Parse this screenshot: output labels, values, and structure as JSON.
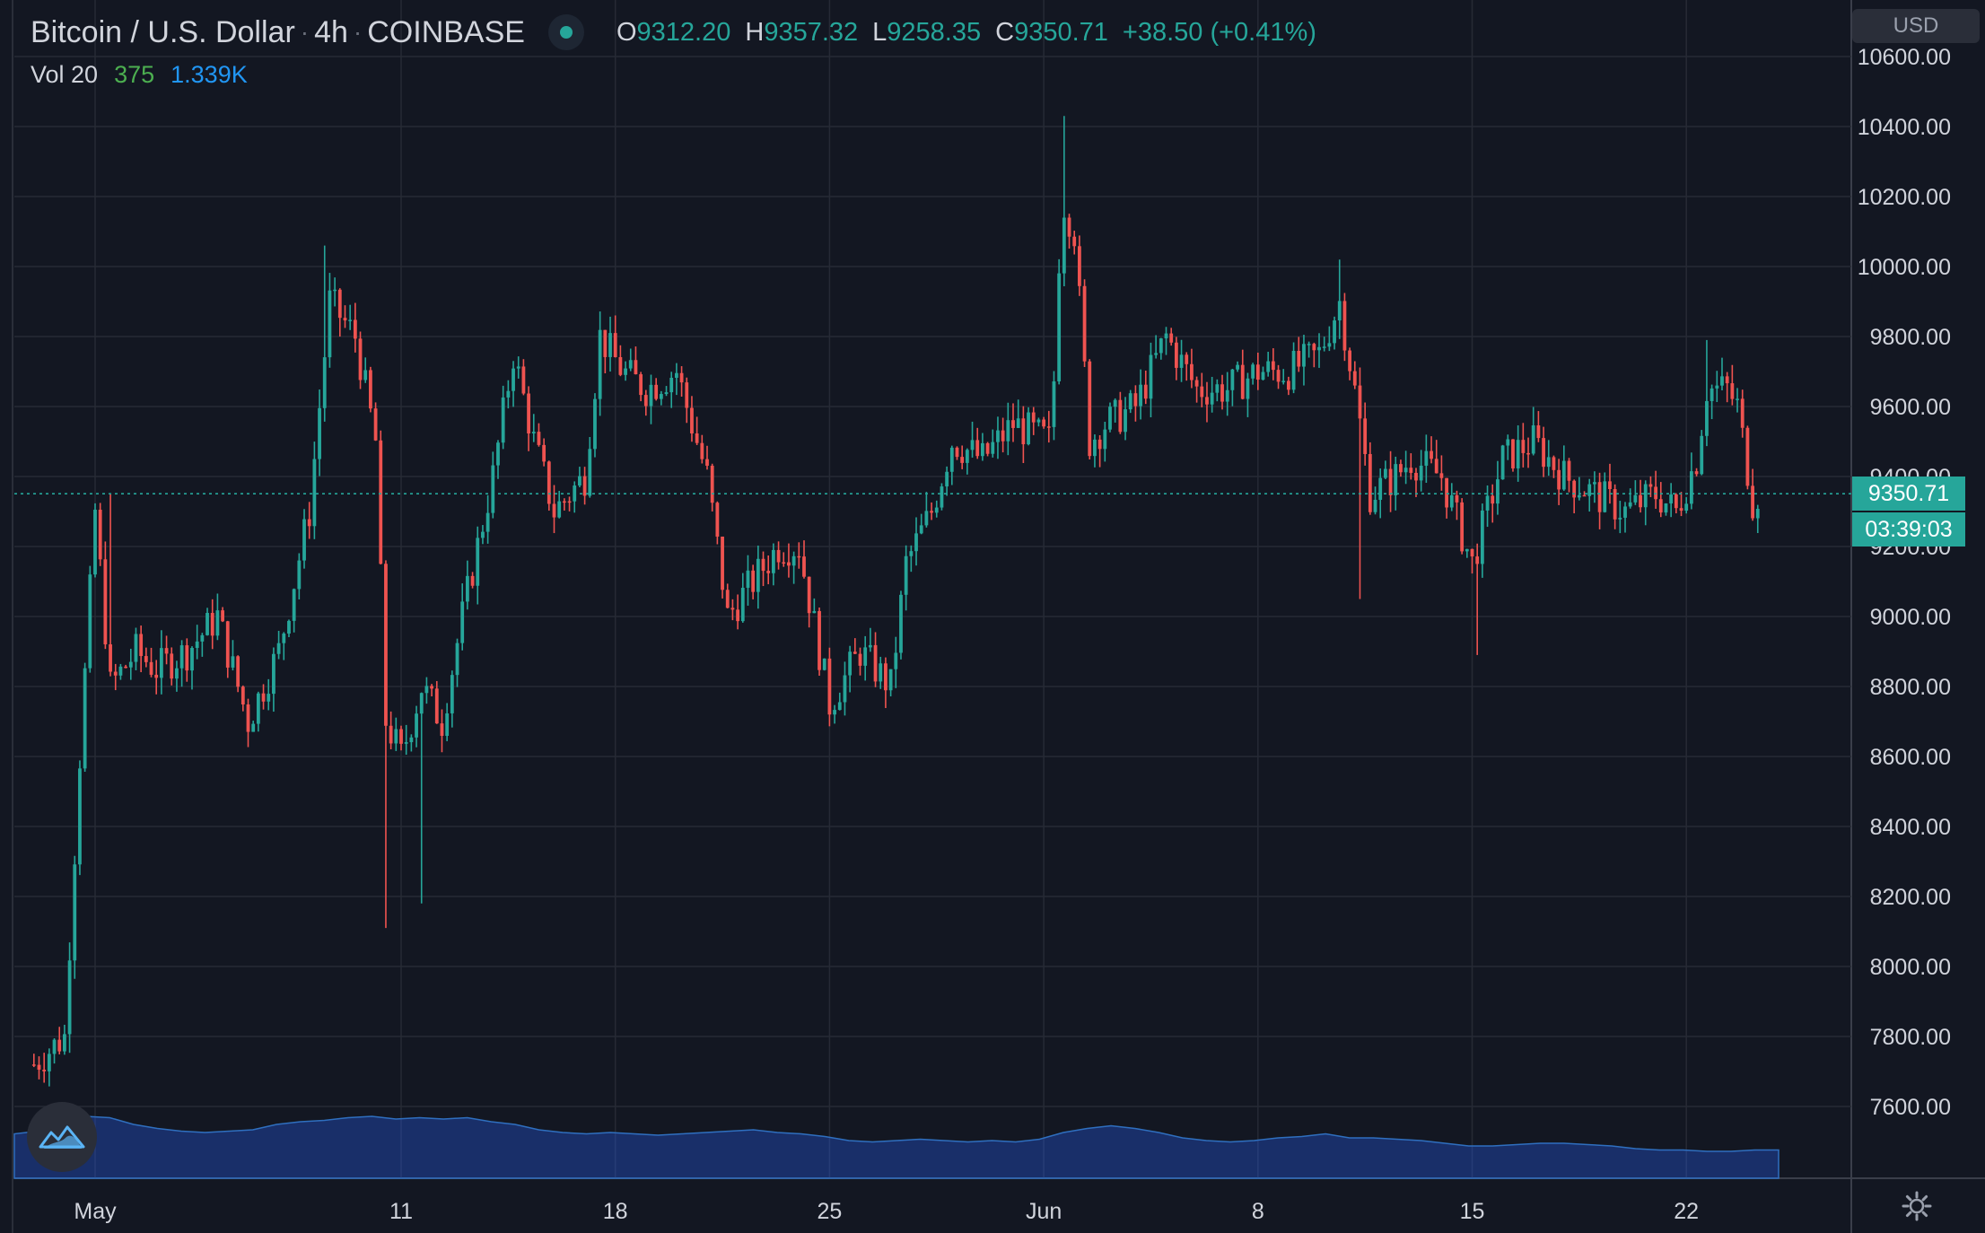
{
  "header": {
    "symbol": "Bitcoin / U.S. Dollar",
    "sep1": "·",
    "interval": "4h",
    "sep2": "·",
    "exchange": "COINBASE",
    "open_label": "O",
    "open": "9312.20",
    "high_label": "H",
    "high": "9357.32",
    "low_label": "L",
    "low": "9258.35",
    "close_label": "C",
    "close": "9350.71",
    "change": "+38.50 (+0.41%)"
  },
  "volume": {
    "label": "Vol 20",
    "value": "375",
    "ma": "1.339K"
  },
  "currency": "USD",
  "last_price": "9350.71",
  "countdown": "03:39:03",
  "colors": {
    "background": "#131722",
    "up": "#26a69a",
    "down": "#ef5350",
    "grid": "#2a2e39",
    "volume_area": "#2962ff"
  },
  "icons": [
    "tradingview-logo-icon",
    "settings-gear-icon"
  ],
  "chart_data": {
    "type": "candlestick",
    "title": "Bitcoin / U.S. Dollar · 4h · COINBASE",
    "y_ticks": [
      "10600.00",
      "10400.00",
      "10200.00",
      "10000.00",
      "9800.00",
      "9600.00",
      "9400.00",
      "9200.00",
      "9000.00",
      "8800.00",
      "8600.00",
      "8400.00",
      "8200.00",
      "8000.00",
      "7800.00",
      "7600.00"
    ],
    "x_ticks": [
      "May",
      "11",
      "18",
      "25",
      "Jun",
      "8",
      "15",
      "22"
    ],
    "ylim": [
      7410,
      10710
    ],
    "grid": true,
    "close_path": [
      [
        "Apr 29 00:00",
        7720
      ],
      [
        "Apr 30 00:00",
        7800
      ],
      [
        "Apr 30 12:00",
        8600
      ],
      [
        "May 01 00:00",
        9300
      ],
      [
        "May 01 12:00",
        8800
      ],
      [
        "May 02 08:00",
        8900
      ],
      [
        "May 03 00:00",
        8850
      ],
      [
        "May 04 00:00",
        8900
      ],
      [
        "May 05 00:00",
        9000
      ],
      [
        "May 06 00:00",
        8700
      ],
      [
        "May 07 00:00",
        8900
      ],
      [
        "May 08 00:00",
        9300
      ],
      [
        "May 08 16:00",
        9900
      ],
      [
        "May 09 12:00",
        9800
      ],
      [
        "May 10 04:00",
        9500
      ],
      [
        "May 10 12:00",
        8700
      ],
      [
        "May 11 00:00",
        8600
      ],
      [
        "May 11 16:00",
        8800
      ],
      [
        "May 12 08:00",
        8700
      ],
      [
        "May 13 00:00",
        9000
      ],
      [
        "May 14 00:00",
        9400
      ],
      [
        "May 14 16:00",
        9750
      ],
      [
        "May 15 08:00",
        9500
      ],
      [
        "May 16 00:00",
        9300
      ],
      [
        "May 17 00:00",
        9400
      ],
      [
        "May 17 12:00",
        9800
      ],
      [
        "May 18 06:00",
        9700
      ],
      [
        "May 19 00:00",
        9650
      ],
      [
        "May 20 00:00",
        9700
      ],
      [
        "May 21 00:00",
        9400
      ],
      [
        "May 21 16:00",
        9000
      ],
      [
        "May 22 12:00",
        9100
      ],
      [
        "May 23 08:00",
        9200
      ],
      [
        "May 24 00:00",
        9200
      ],
      [
        "May 25 00:00",
        8750
      ],
      [
        "May 26 00:00",
        8900
      ],
      [
        "May 27 00:00",
        8800
      ],
      [
        "May 27 12:00",
        9150
      ],
      [
        "May 28 08:00",
        9300
      ],
      [
        "May 29 00:00",
        9500
      ],
      [
        "May 30 00:00",
        9450
      ],
      [
        "May 31 00:00",
        9550
      ],
      [
        "Jun 01 06:00",
        9500
      ],
      [
        "Jun 01 14:00",
        10200
      ],
      [
        "Jun 02 00:00",
        10100
      ],
      [
        "Jun 02 12:00",
        9500
      ],
      [
        "Jun 03 00:00",
        9550
      ],
      [
        "Jun 04 00:00",
        9600
      ],
      [
        "Jun 05 00:00",
        9800
      ],
      [
        "Jun 06 00:00",
        9650
      ],
      [
        "Jun 07 00:00",
        9650
      ],
      [
        "Jun 08 00:00",
        9700
      ],
      [
        "Jun 09 00:00",
        9700
      ],
      [
        "Jun 10 00:00",
        9750
      ],
      [
        "Jun 10 16:00",
        9900
      ],
      [
        "Jun 11 06:00",
        9600
      ],
      [
        "Jun 11 16:00",
        9350
      ],
      [
        "Jun 12 12:00",
        9400
      ],
      [
        "Jun 13 00:00",
        9450
      ],
      [
        "Jun 14 00:00",
        9400
      ],
      [
        "Jun 15 00:00",
        9150
      ],
      [
        "Jun 15 12:00",
        9300
      ],
      [
        "Jun 16 00:00",
        9450
      ],
      [
        "Jun 17 00:00",
        9500
      ],
      [
        "Jun 18 00:00",
        9400
      ],
      [
        "Jun 19 00:00",
        9350
      ],
      [
        "Jun 20 00:00",
        9300
      ],
      [
        "Jun 21 00:00",
        9350
      ],
      [
        "Jun 21 16:00",
        9300
      ],
      [
        "Jun 22 08:00",
        9450
      ],
      [
        "Jun 22 16:00",
        9650
      ],
      [
        "Jun 23 08:00",
        9650
      ],
      [
        "Jun 23 16:00",
        9600
      ],
      [
        "Jun 24 04:00",
        9330
      ],
      [
        "Jun 24 08:00",
        9350.71
      ]
    ],
    "highlight_wicks": [
      [
        "May 01 12:00",
        9350
      ],
      [
        "May 08 12:00",
        10060
      ],
      [
        "May 10 12:00",
        8110
      ],
      [
        "May 11 16:00",
        8180
      ],
      [
        "Jun 01 16:00",
        10430
      ],
      [
        "Jun 10 16:00",
        10020
      ],
      [
        "Jun 11 08:00",
        9050
      ],
      [
        "Jun 15 04:00",
        8890
      ],
      [
        "Jun 22 16:00",
        9790
      ]
    ],
    "volume_area": {
      "name": "Vol 20",
      "note_units": "relative",
      "values": [
        0.33,
        0.35,
        0.43,
        0.46,
        0.45,
        0.4,
        0.37,
        0.35,
        0.34,
        0.35,
        0.36,
        0.4,
        0.42,
        0.43,
        0.45,
        0.46,
        0.44,
        0.45,
        0.44,
        0.45,
        0.42,
        0.4,
        0.36,
        0.34,
        0.33,
        0.34,
        0.33,
        0.32,
        0.33,
        0.34,
        0.35,
        0.36,
        0.34,
        0.33,
        0.31,
        0.28,
        0.27,
        0.28,
        0.29,
        0.28,
        0.27,
        0.28,
        0.27,
        0.29,
        0.34,
        0.37,
        0.39,
        0.37,
        0.34,
        0.3,
        0.28,
        0.27,
        0.28,
        0.3,
        0.31,
        0.33,
        0.3,
        0.3,
        0.29,
        0.28,
        0.26,
        0.24,
        0.24,
        0.25,
        0.26,
        0.26,
        0.25,
        0.24,
        0.22,
        0.21,
        0.21,
        0.2,
        0.2,
        0.21,
        0.21
      ]
    }
  }
}
